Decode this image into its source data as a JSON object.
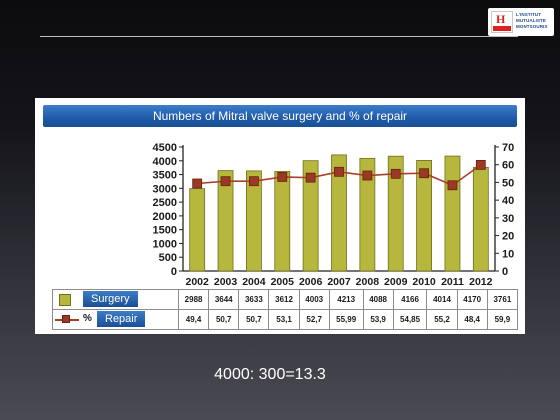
{
  "logo": {
    "line1": "L'INSTITUT",
    "line2": "MUTUALISTE",
    "line3": "MONTSOURIS",
    "letter": "H"
  },
  "chart_data": {
    "type": "bar",
    "title": "Numbers of Mitral valve surgery and % of repair",
    "categories": [
      "2002",
      "2003",
      "2004",
      "2005",
      "2006",
      "2007",
      "2008",
      "2009",
      "2010",
      "2011",
      "2012"
    ],
    "series": [
      {
        "name": "Surgery",
        "type": "bar",
        "axis": "left",
        "color": "#b7b73d",
        "values": [
          2988,
          3644,
          3633,
          3612,
          4003,
          4213,
          4088,
          4166,
          4014,
          4170,
          3761
        ]
      },
      {
        "name": "Repair",
        "type": "line",
        "axis": "right",
        "color": "#9a3a24",
        "values": [
          49.4,
          50.7,
          50.7,
          53.1,
          52.7,
          55.99,
          53.9,
          54.85,
          55.2,
          48.4,
          59.9
        ],
        "labels": [
          "49,4",
          "50,7",
          "50,7",
          "53,1",
          "52,7",
          "55,99",
          "53,9",
          "54,85",
          "55,2",
          "48,4",
          "59,9"
        ]
      }
    ],
    "ylim": [
      0,
      4500
    ],
    "yticks": [
      0,
      500,
      1000,
      1500,
      2000,
      2500,
      3000,
      3500,
      4000,
      4500
    ],
    "y2lim": [
      0,
      70
    ],
    "y2ticks": [
      0,
      10,
      20,
      30,
      40,
      50,
      60,
      70
    ],
    "legend": "data table below chart",
    "grid": false
  },
  "table": {
    "surgery_label": "Surgery",
    "repair_percent": "%",
    "repair_label": "Repair"
  },
  "caption": "4000: 300=13.3"
}
